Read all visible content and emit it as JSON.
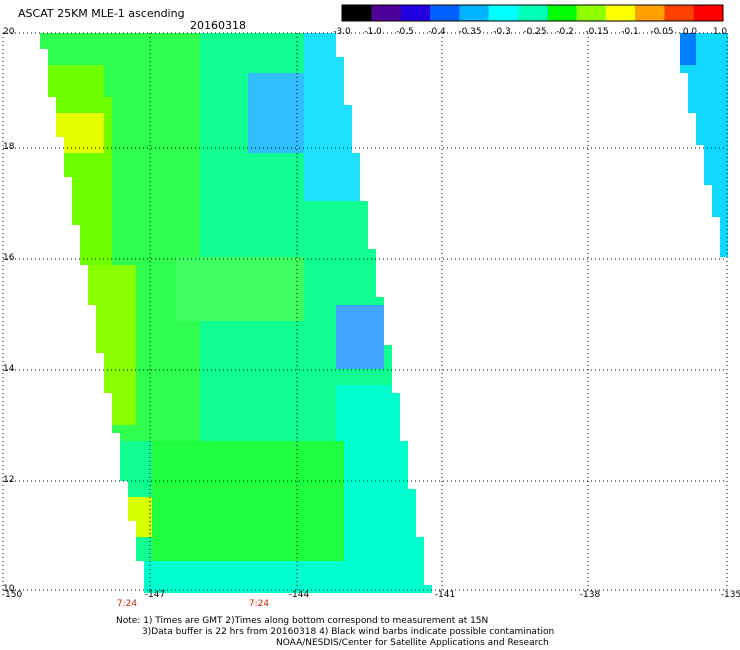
{
  "title": "ASCAT 25KM MLE-1 ascending",
  "date": "20160318",
  "colorbar": {
    "labels": [
      "-3.0",
      "-1.0",
      "-0.5",
      "-0.4",
      "-0.35",
      "-0.3",
      "-0.25",
      "-0.2",
      "-0.15",
      "-0.1",
      "-0.05",
      "0.0",
      "1.0"
    ],
    "colors": [
      "#000000",
      "#50009a",
      "#2000e0",
      "#0060ff",
      "#00b4ff",
      "#00ffff",
      "#00ffb4",
      "#00ff00",
      "#90ff00",
      "#ffff00",
      "#ffa000",
      "#ff4000",
      "#ff0000"
    ]
  },
  "lat_ticks": [
    "20",
    "18",
    "16",
    "14",
    "12",
    "10"
  ],
  "lon_ticks": [
    "-150",
    "-147",
    "-144",
    "-141",
    "-138",
    "-135"
  ],
  "times": [
    "7:24",
    "7:24"
  ],
  "notes": [
    "Note: 1) Times are GMT 2)Times along bottom correspond to measurement at 15N",
    "3)Data buffer is 22 hrs from 20160318 4) Black wind barbs indicate possible contamination",
    "NOAA/NESDIS/Center for Satellite Applications and Research"
  ]
}
